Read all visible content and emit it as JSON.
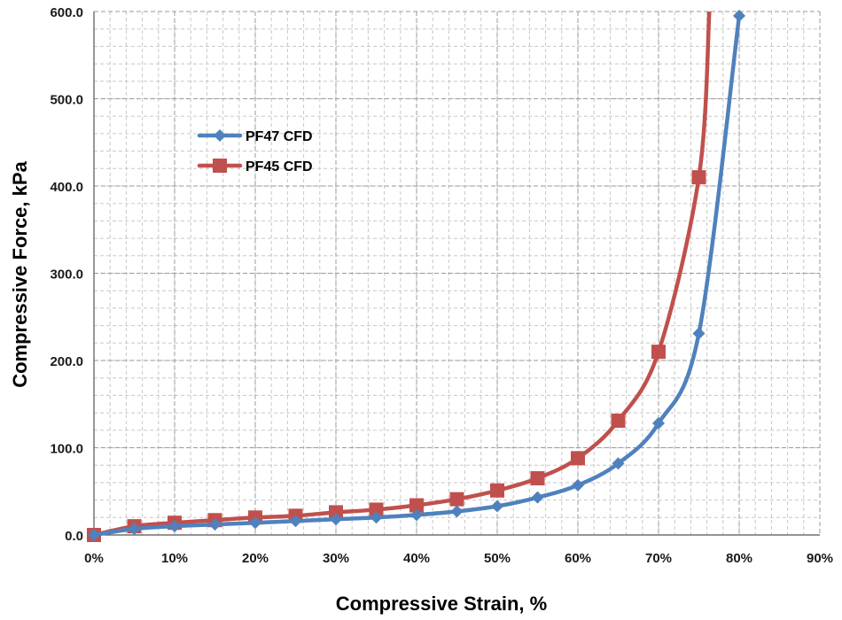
{
  "chart_data": {
    "type": "line",
    "title": "",
    "xlabel": "Compressive Strain, %",
    "ylabel": "Compressive Force, kPa",
    "xlim": [
      0,
      90
    ],
    "ylim": [
      0,
      600
    ],
    "x_ticks": [
      0,
      10,
      20,
      30,
      40,
      50,
      60,
      70,
      80,
      90
    ],
    "x_tick_labels": [
      "0%",
      "10%",
      "20%",
      "30%",
      "40%",
      "50%",
      "60%",
      "70%",
      "80%",
      "90%"
    ],
    "y_ticks": [
      0,
      100,
      200,
      300,
      400,
      500,
      600
    ],
    "y_tick_labels": [
      "0.0",
      "100.0",
      "200.0",
      "300.0",
      "400.0",
      "500.0",
      "600.0"
    ],
    "grid": true,
    "legend_position": "upper-left",
    "series": [
      {
        "name": "PF47 CFD",
        "color": "#4f81bd",
        "marker": "diamond",
        "x": [
          0,
          5,
          10,
          15,
          20,
          25,
          30,
          35,
          40,
          45,
          50,
          55,
          60,
          65,
          70,
          75,
          80
        ],
        "y": [
          0,
          7,
          10,
          12,
          14,
          16,
          18,
          20,
          23,
          27,
          33,
          43,
          57,
          82,
          128,
          231,
          595
        ]
      },
      {
        "name": "PF45 CFD",
        "color": "#c0504d",
        "marker": "square",
        "x": [
          0,
          5,
          10,
          15,
          20,
          25,
          30,
          35,
          40,
          45,
          50,
          55,
          60,
          65,
          70,
          75
        ],
        "y": [
          0,
          10,
          14,
          17,
          20,
          22,
          26,
          29,
          34,
          41,
          51,
          65,
          88,
          131,
          210,
          410
        ]
      }
    ],
    "extended_tail": {
      "note_series": "PF45 CFD",
      "x_end": 76.3,
      "y_end": 600
    }
  }
}
